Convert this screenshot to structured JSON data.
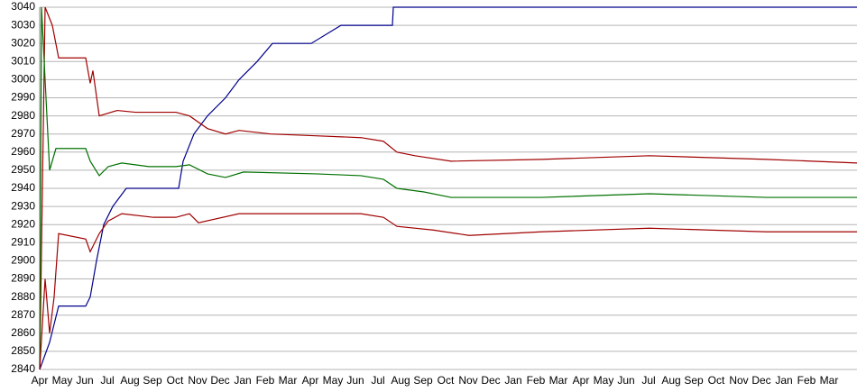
{
  "chart_data": {
    "type": "line",
    "xlim": [
      0,
      906
    ],
    "ylim": [
      2840,
      3040
    ],
    "yticks": [
      2840,
      2850,
      2860,
      2870,
      2880,
      2890,
      2900,
      2910,
      2920,
      2930,
      2940,
      2950,
      2960,
      2970,
      2980,
      2990,
      3000,
      3010,
      3020,
      3030,
      3040
    ],
    "xticks": [
      {
        "value": 0,
        "label": "Apr"
      },
      {
        "value": 25,
        "label": "May"
      },
      {
        "value": 50,
        "label": "Jun"
      },
      {
        "value": 75,
        "label": "Jul"
      },
      {
        "value": 100,
        "label": "Aug"
      },
      {
        "value": 125,
        "label": "Sep"
      },
      {
        "value": 150,
        "label": "Oct"
      },
      {
        "value": 175,
        "label": "Nov"
      },
      {
        "value": 200,
        "label": "Dec"
      },
      {
        "value": 225,
        "label": "Jan"
      },
      {
        "value": 250,
        "label": "Feb"
      },
      {
        "value": 275,
        "label": "Mar"
      },
      {
        "value": 300,
        "label": "Apr"
      },
      {
        "value": 325,
        "label": "May"
      },
      {
        "value": 350,
        "label": "Jun"
      },
      {
        "value": 375,
        "label": "Jul"
      },
      {
        "value": 400,
        "label": "Aug"
      },
      {
        "value": 425,
        "label": "Sep"
      },
      {
        "value": 450,
        "label": "Oct"
      },
      {
        "value": 475,
        "label": "Nov"
      },
      {
        "value": 500,
        "label": "Dec"
      },
      {
        "value": 525,
        "label": "Jan"
      },
      {
        "value": 550,
        "label": "Feb"
      },
      {
        "value": 575,
        "label": "Mar"
      },
      {
        "value": 600,
        "label": "Apr"
      },
      {
        "value": 625,
        "label": "May"
      },
      {
        "value": 650,
        "label": "Jun"
      },
      {
        "value": 675,
        "label": "Jul"
      },
      {
        "value": 700,
        "label": "Aug"
      },
      {
        "value": 725,
        "label": "Sep"
      },
      {
        "value": 750,
        "label": "Oct"
      },
      {
        "value": 775,
        "label": "Nov"
      },
      {
        "value": 800,
        "label": "Dec"
      },
      {
        "value": 825,
        "label": "Jan"
      },
      {
        "value": 850,
        "label": "Feb"
      },
      {
        "value": 875,
        "label": "Mar"
      }
    ],
    "grid": true,
    "series": [
      {
        "color": "#00008b",
        "x": [
          0,
          11,
          21,
          51,
          56,
          63,
          71,
          81,
          96,
          154,
          159,
          171,
          186,
          206,
          221,
          241,
          258,
          301,
          334,
          391,
          392,
          906
        ],
        "values": [
          2840,
          2855,
          2875,
          2875,
          2880,
          2900,
          2920,
          2930,
          2940,
          2940,
          2955,
          2970,
          2980,
          2990,
          3000,
          3010,
          3020,
          3020,
          3030,
          3030,
          3040,
          3040
        ]
      },
      {
        "color": "#a00000",
        "x": [
          0,
          6,
          14,
          21,
          51,
          56,
          59,
          66,
          86,
          106,
          151,
          166,
          186,
          206,
          221,
          256,
          306,
          356,
          381,
          396,
          416,
          456,
          556,
          676,
          806,
          856,
          906
        ],
        "values": [
          2840,
          3040,
          3030,
          3012,
          3012,
          2998,
          3005,
          2980,
          2983,
          2982,
          2982,
          2980,
          2973,
          2970,
          2972,
          2970,
          2969,
          2968,
          2966,
          2960,
          2958,
          2955,
          2956,
          2958,
          2956,
          2955,
          2954
        ]
      },
      {
        "color": "#007000",
        "x": [
          0,
          2,
          11,
          18,
          51,
          56,
          66,
          76,
          91,
          121,
          151,
          166,
          186,
          206,
          226,
          306,
          356,
          381,
          396,
          426,
          456,
          556,
          676,
          806,
          906
        ],
        "values": [
          2840,
          3040,
          2950,
          2962,
          2962,
          2955,
          2947,
          2952,
          2954,
          2952,
          2952,
          2953,
          2948,
          2946,
          2949,
          2948,
          2947,
          2945,
          2940,
          2938,
          2935,
          2935,
          2937,
          2935,
          2935
        ]
      },
      {
        "color": "#a00000",
        "x": [
          0,
          6,
          11,
          16,
          21,
          51,
          56,
          66,
          76,
          91,
          126,
          151,
          166,
          176,
          221,
          256,
          306,
          356,
          381,
          396,
          436,
          476,
          556,
          676,
          806,
          906
        ],
        "values": [
          2840,
          2890,
          2860,
          2880,
          2915,
          2912,
          2905,
          2915,
          2922,
          2926,
          2924,
          2924,
          2926,
          2921,
          2926,
          2926,
          2926,
          2926,
          2924,
          2919,
          2917,
          2914,
          2916,
          2918,
          2916,
          2916
        ]
      }
    ]
  }
}
